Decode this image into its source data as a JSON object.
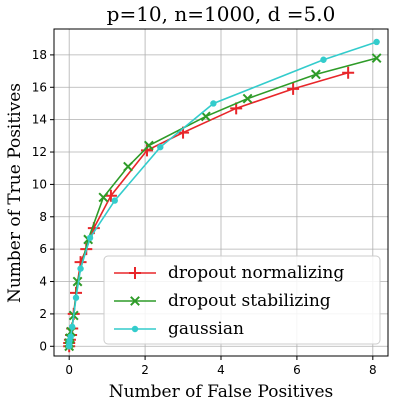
{
  "chart_data": {
    "type": "line",
    "title": "p=10, n=1000, d =5.0",
    "xlabel": "Number of False Positives",
    "ylabel": "Number of True Positives",
    "xlim": [
      -0.4,
      8.4
    ],
    "ylim": [
      -0.6,
      19.6
    ],
    "xticks": [
      0,
      2,
      4,
      6,
      8
    ],
    "yticks": [
      0,
      2,
      4,
      6,
      8,
      10,
      12,
      14,
      16,
      18
    ],
    "grid": true,
    "legend_position": "lower-right",
    "series": [
      {
        "name": "dropout normalizing",
        "color": "#e8262a",
        "marker": "plus",
        "x": [
          0.0,
          0.0,
          0.02,
          0.05,
          0.08,
          0.12,
          0.18,
          0.3,
          0.45,
          0.65,
          1.1,
          2.05,
          3.0,
          4.4,
          5.9,
          7.35
        ],
        "y": [
          0.0,
          0.2,
          0.4,
          0.7,
          1.1,
          2.0,
          3.3,
          5.2,
          6.0,
          7.3,
          9.3,
          12.1,
          13.2,
          14.7,
          15.9,
          16.9
        ]
      },
      {
        "name": "dropout stabilizing",
        "color": "#2e9b28",
        "marker": "x",
        "x": [
          0.0,
          0.0,
          0.02,
          0.05,
          0.12,
          0.22,
          0.5,
          0.9,
          1.55,
          2.1,
          3.6,
          4.7,
          6.5,
          8.1
        ],
        "y": [
          0.0,
          0.2,
          0.5,
          0.9,
          1.9,
          4.0,
          6.6,
          9.2,
          11.1,
          12.4,
          14.2,
          15.3,
          16.8,
          17.8
        ]
      },
      {
        "name": "gaussian",
        "color": "#33cccc",
        "marker": "dot",
        "x": [
          0.0,
          0.0,
          0.01,
          0.04,
          0.08,
          0.18,
          0.3,
          0.55,
          1.2,
          2.4,
          3.8,
          6.7,
          8.1
        ],
        "y": [
          0.0,
          0.15,
          0.35,
          0.6,
          1.2,
          3.0,
          4.8,
          6.7,
          9.0,
          12.3,
          15.0,
          17.7,
          18.8
        ]
      }
    ]
  }
}
